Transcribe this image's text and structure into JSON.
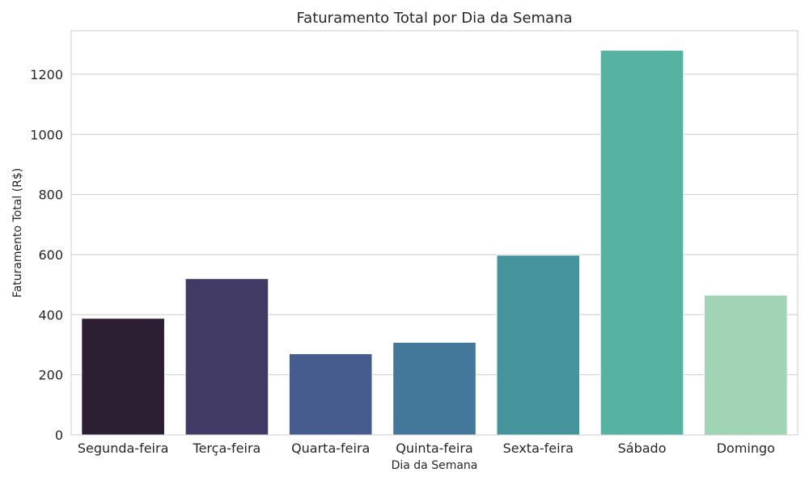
{
  "chart_data": {
    "type": "bar",
    "title": "Faturamento Total por Dia da Semana",
    "xlabel": "Dia da Semana",
    "ylabel": "Faturamento Total (R$)",
    "categories": [
      "Segunda-feira",
      "Terça-feira",
      "Quarta-feira",
      "Quinta-feira",
      "Sexta-feira",
      "Sábado",
      "Domingo"
    ],
    "values": [
      388,
      520,
      270,
      308,
      598,
      1280,
      465
    ],
    "ylim": [
      0,
      1345
    ],
    "yticks": [
      0,
      200,
      400,
      600,
      800,
      1000,
      1200
    ],
    "grid": "horizontal",
    "colors": [
      "#2c1f33",
      "#413a65",
      "#465b8e",
      "#43789a",
      "#45949c",
      "#57b3a1",
      "#a1d4b4"
    ]
  }
}
